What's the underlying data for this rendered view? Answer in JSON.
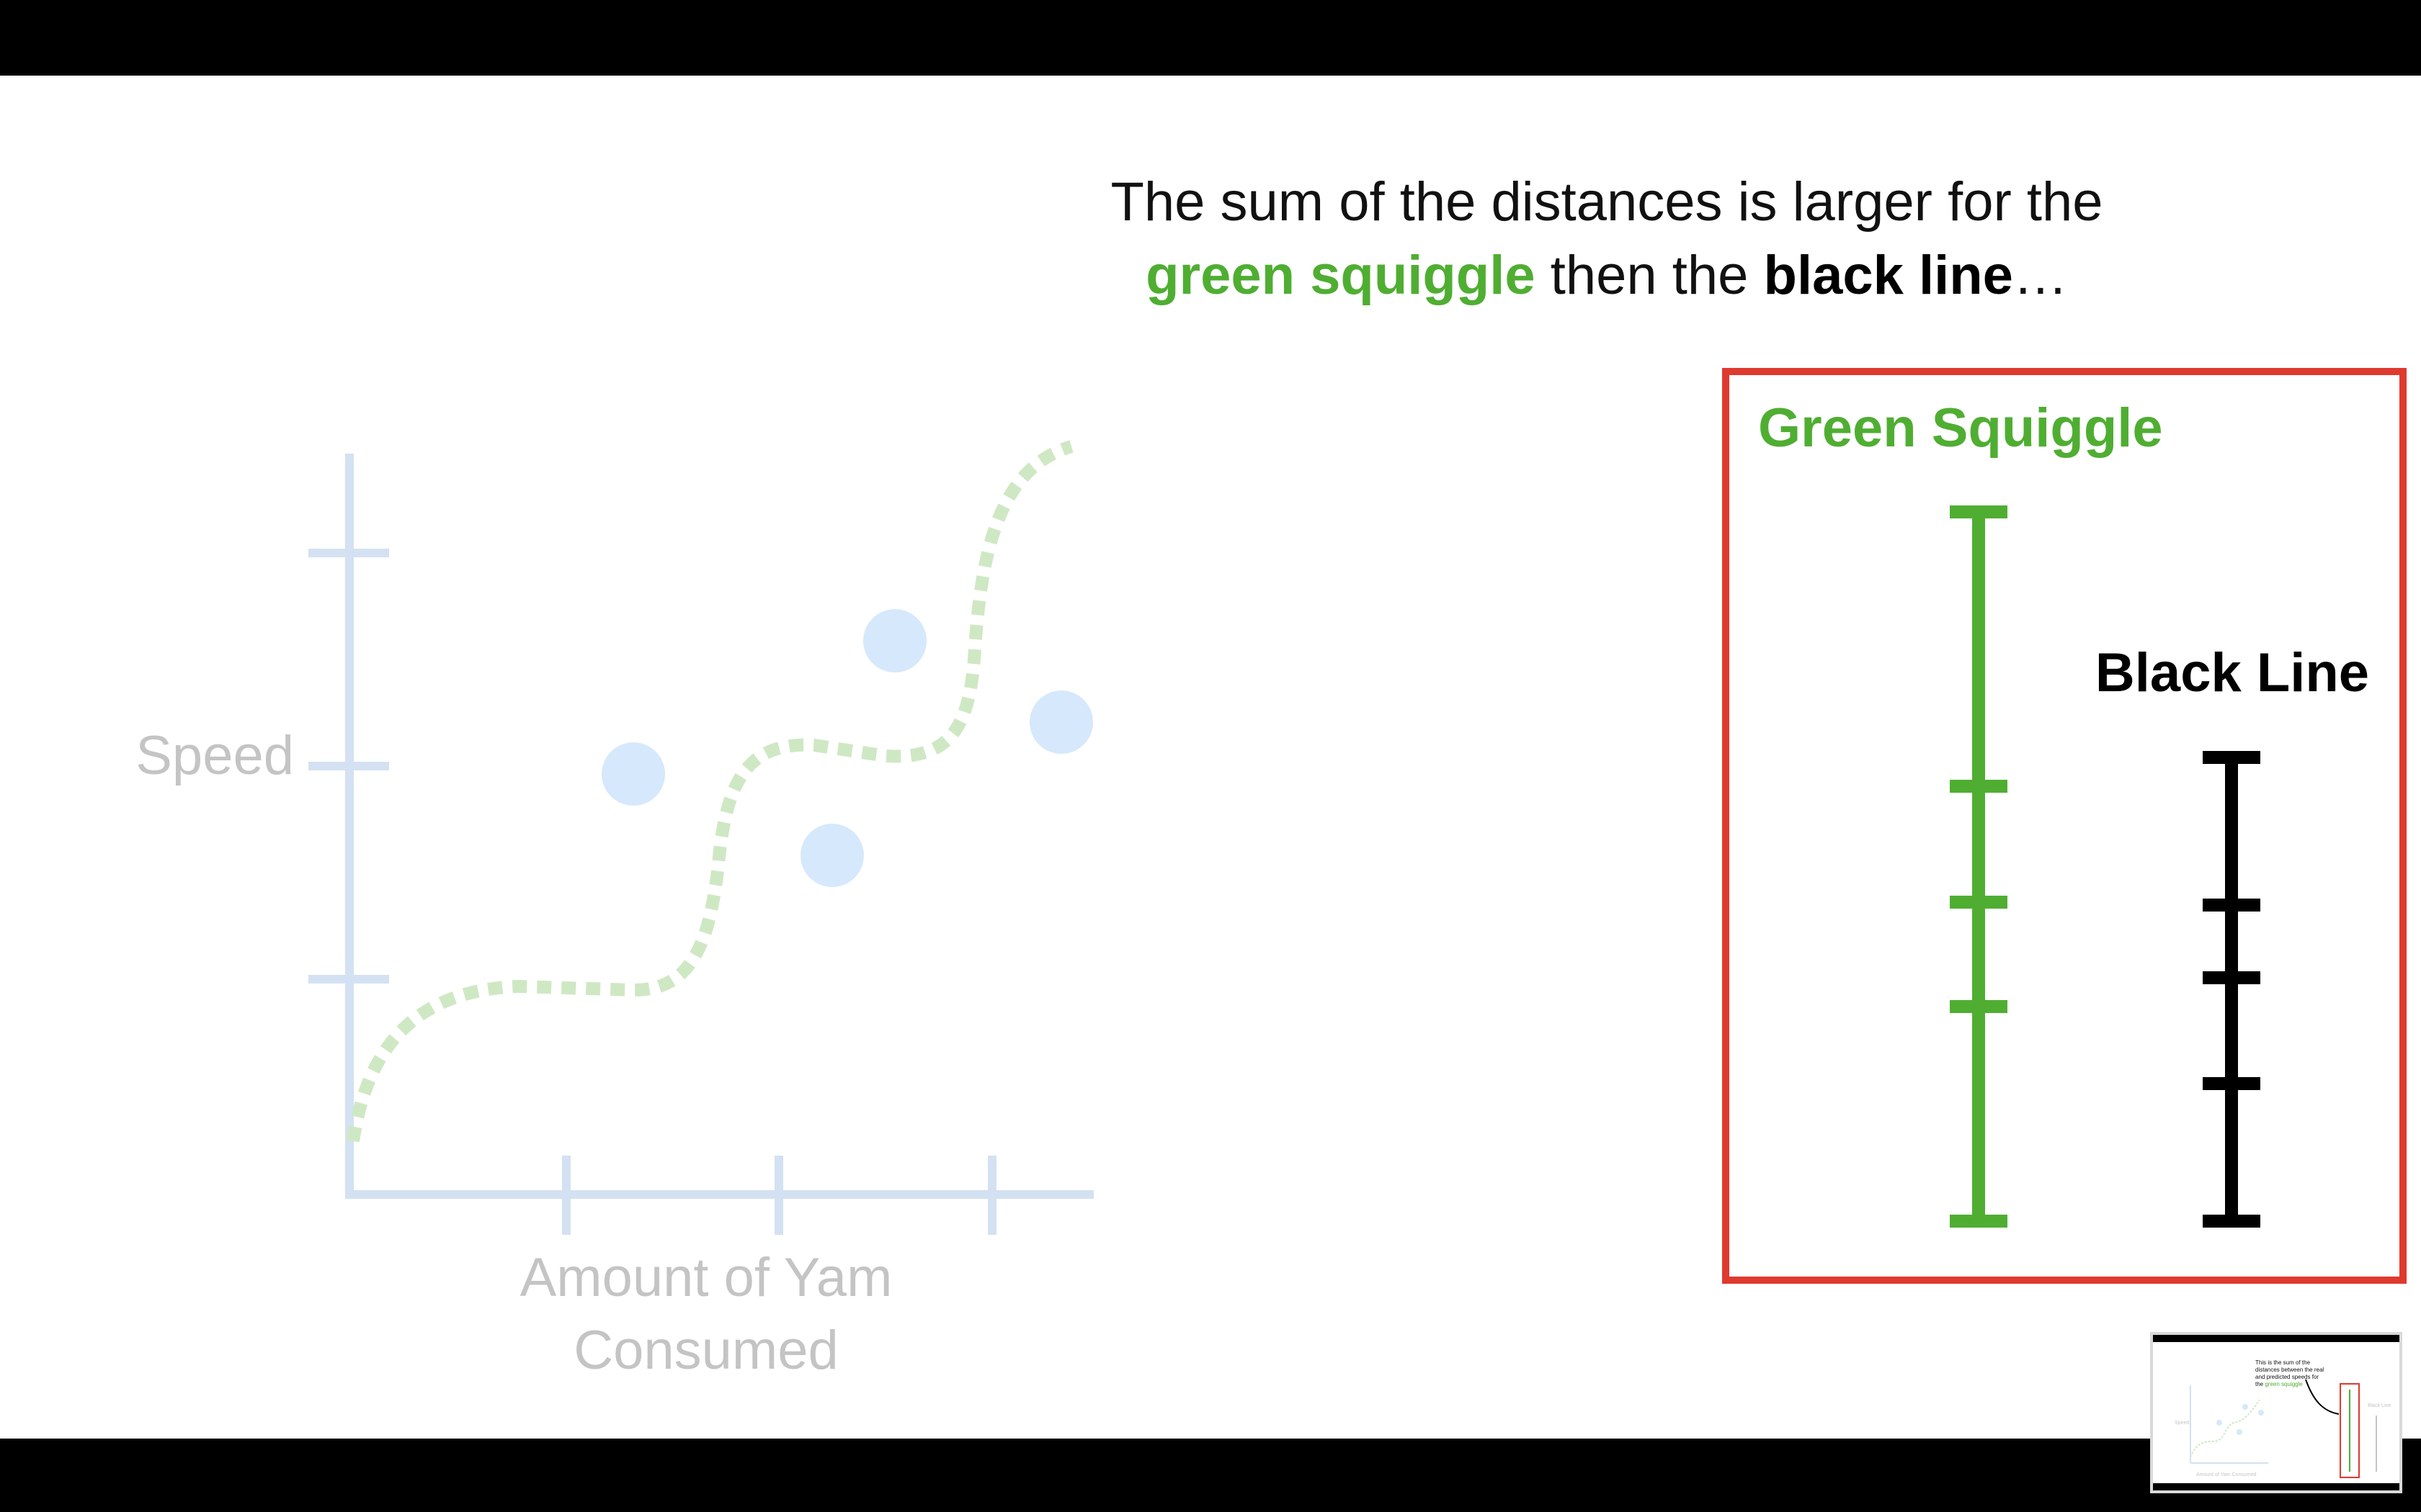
{
  "caption": {
    "line1": "The sum of the distances is larger for the",
    "line2_green": "green squiggle",
    "line2_mid": " then the ",
    "line2_black": "black line",
    "line2_end": "…"
  },
  "plot": {
    "y_axis_label": "Speed",
    "x_axis_label_line1": "Amount of Yam",
    "x_axis_label_line2": "Consumed"
  },
  "panel": {
    "green_label": "Green Squiggle",
    "black_label": "Black Line"
  },
  "thumbnail": {
    "text_plain": "This is the sum of the distances between the real and predicted speeds for the",
    "text_green": "green squiggle",
    "y_label": "Speed",
    "x_label": "Amount of Yam Consumed",
    "black_label": "Black Line"
  },
  "colors": {
    "green": "#4fae32",
    "green_faded": "#cfe8c4",
    "axis_faded": "#d3e1f2",
    "point_faded": "#d6e8fb",
    "label_faded": "#c4c4c4",
    "panel_border": "#df3a2f",
    "black": "#000000"
  }
}
